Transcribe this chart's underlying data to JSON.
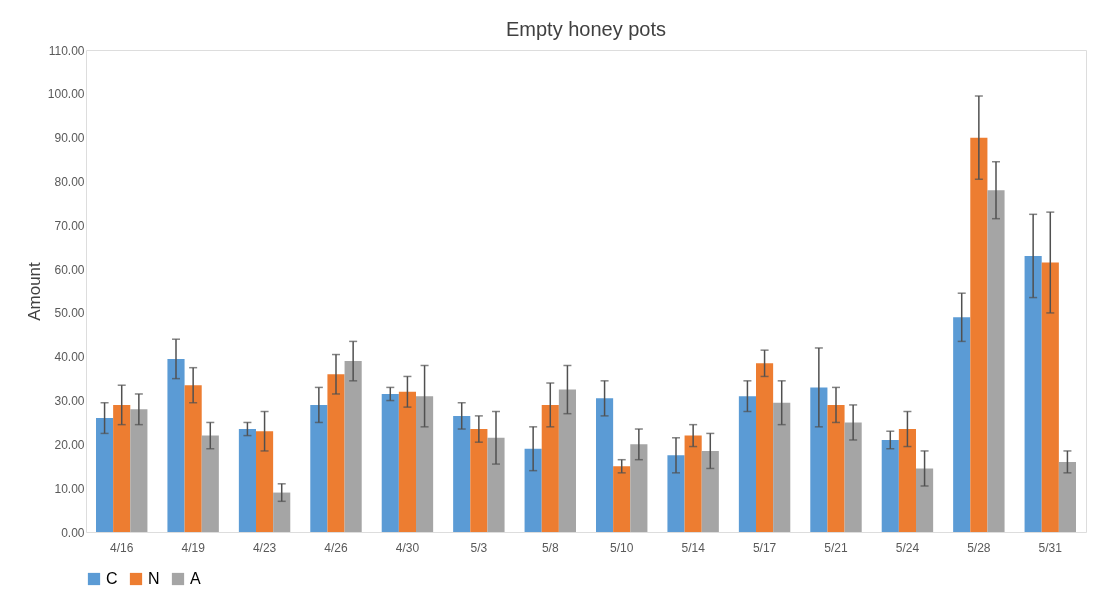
{
  "chart_data": {
    "type": "bar",
    "title": "Empty honey pots",
    "ylabel": "Amount",
    "categories": [
      "4/16",
      "4/19",
      "4/23",
      "4/26",
      "4/30",
      "5/3",
      "5/8",
      "5/10",
      "5/14",
      "5/17",
      "5/21",
      "5/24",
      "5/28",
      "5/31"
    ],
    "series": [
      {
        "name": "C",
        "color": "#5b9bd5",
        "values": [
          26,
          39.5,
          23.5,
          29,
          31.5,
          26.5,
          19,
          30.5,
          17.5,
          31,
          33,
          21,
          49,
          63
        ],
        "errors": [
          3.5,
          4.5,
          1.5,
          4,
          1.5,
          3,
          5,
          4,
          4,
          3.5,
          9,
          2,
          5.5,
          9.5
        ]
      },
      {
        "name": "N",
        "color": "#ed7d31",
        "values": [
          29,
          33.5,
          23,
          36,
          32,
          23.5,
          29,
          15,
          22,
          38.5,
          29,
          23.5,
          90,
          61.5
        ],
        "errors": [
          4.5,
          4,
          4.5,
          4.5,
          3.5,
          3,
          5,
          1.5,
          2.5,
          3,
          4,
          4,
          9.5,
          11.5
        ]
      },
      {
        "name": "A",
        "color": "#a5a5a5",
        "values": [
          28,
          22,
          9,
          39,
          31,
          21.5,
          32.5,
          20,
          18.5,
          29.5,
          25,
          14.5,
          78,
          16
        ],
        "errors": [
          3.5,
          3,
          2,
          4.5,
          7,
          6,
          5.5,
          3.5,
          4,
          5,
          4,
          4,
          6.5,
          2.5
        ]
      }
    ],
    "ylim": [
      0,
      110
    ],
    "yticks": [
      {
        "value": 0,
        "label": "0.00"
      },
      {
        "value": 10,
        "label": "10.00"
      },
      {
        "value": 20,
        "label": "20.00"
      },
      {
        "value": 30,
        "label": "30.00"
      },
      {
        "value": 40,
        "label": "40.00"
      },
      {
        "value": 50,
        "label": "50.00"
      },
      {
        "value": 60,
        "label": "60.00"
      },
      {
        "value": 70,
        "label": "70.00"
      },
      {
        "value": 80,
        "label": "80.00"
      },
      {
        "value": 90,
        "label": "90.00"
      },
      {
        "value": 100,
        "label": "100.00"
      },
      {
        "value": 110,
        "label": "110.00"
      }
    ],
    "grid": false,
    "legend": "bottom"
  }
}
